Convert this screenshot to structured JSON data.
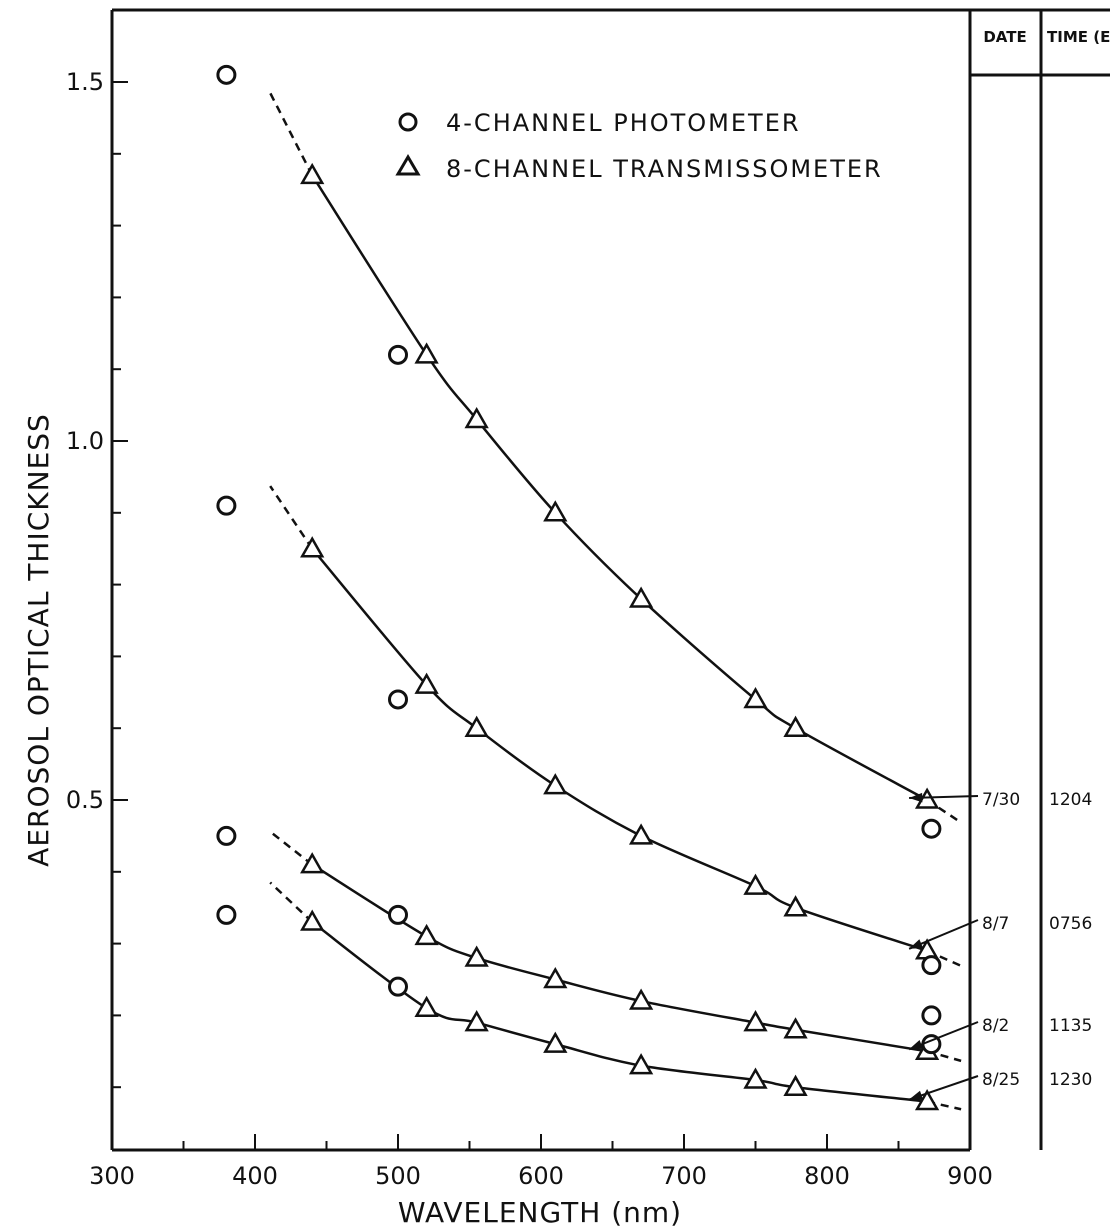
{
  "chart_data": {
    "type": "scatter",
    "title": "",
    "xlabel": "WAVELENGTH (nm)",
    "ylabel": "AEROSOL OPTICAL THICKNESS",
    "xlim": [
      300,
      900
    ],
    "ylim": [
      0.05,
      1.6
    ],
    "x_ticks": [
      "300",
      "400",
      "500",
      "600",
      "700",
      "800",
      "900"
    ],
    "y_ticks": [
      "0.5",
      "1.0",
      "1.5"
    ],
    "grid": false,
    "legend": {
      "placement": "top-center",
      "entries": [
        {
          "marker": "circle",
          "label": "4-CHANNEL PHOTOMETER"
        },
        {
          "marker": "triangle",
          "label": "8-CHANNEL TRANSMISSOMETER"
        }
      ]
    },
    "table": {
      "headers": [
        "DATE",
        "TIME (EDT)"
      ],
      "rows": [
        {
          "date": "7/30",
          "time": "1204"
        },
        {
          "date": "8/7",
          "time": "0756"
        },
        {
          "date": "8/2",
          "time": "1135"
        },
        {
          "date": "8/25",
          "time": "1230"
        }
      ]
    },
    "series": [
      {
        "date": "7/30",
        "photometer": {
          "x": [
            380,
            500,
            873
          ],
          "y": [
            1.51,
            1.12,
            0.46
          ]
        },
        "transmissometer": {
          "x": [
            440,
            520,
            555,
            610,
            670,
            750,
            778,
            870
          ],
          "y": [
            1.37,
            1.12,
            1.03,
            0.9,
            0.78,
            0.64,
            0.6,
            0.5
          ]
        }
      },
      {
        "date": "8/7",
        "photometer": {
          "x": [
            380,
            500,
            873
          ],
          "y": [
            0.91,
            0.64,
            0.27
          ]
        },
        "transmissometer": {
          "x": [
            440,
            520,
            555,
            610,
            670,
            750,
            778,
            870
          ],
          "y": [
            0.85,
            0.66,
            0.6,
            0.52,
            0.45,
            0.38,
            0.35,
            0.29
          ]
        }
      },
      {
        "date": "8/2",
        "photometer": {
          "x": [
            380,
            500,
            873
          ],
          "y": [
            0.45,
            0.34,
            0.2
          ]
        },
        "transmissometer": {
          "x": [
            440,
            520,
            555,
            610,
            670,
            750,
            778,
            870
          ],
          "y": [
            0.41,
            0.31,
            0.28,
            0.25,
            0.22,
            0.19,
            0.18,
            0.15
          ]
        }
      },
      {
        "date": "8/25",
        "photometer": {
          "x": [
            380,
            500,
            873
          ],
          "y": [
            0.34,
            0.24,
            0.16
          ]
        },
        "transmissometer": {
          "x": [
            440,
            520,
            555,
            610,
            670,
            750,
            778,
            870
          ],
          "y": [
            0.33,
            0.21,
            0.19,
            0.16,
            0.13,
            0.11,
            0.1,
            0.08
          ]
        }
      }
    ]
  }
}
